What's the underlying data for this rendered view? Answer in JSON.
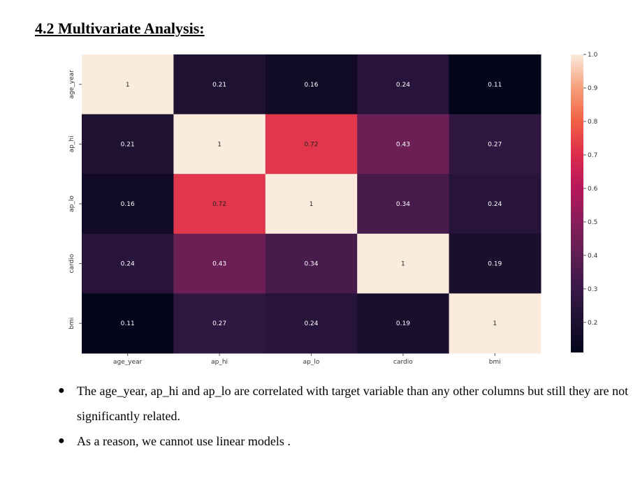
{
  "heading": "4.2 Multivariate Analysis:",
  "chart_data": {
    "type": "heatmap",
    "row_labels": [
      "age_year",
      "ap_hi",
      "ap_lo",
      "cardio",
      "bmi"
    ],
    "col_labels": [
      "age_year",
      "ap_hi",
      "ap_lo",
      "cardio",
      "bmi"
    ],
    "values": [
      [
        1,
        0.21,
        0.16,
        0.24,
        0.11
      ],
      [
        0.21,
        1,
        0.72,
        0.43,
        0.27
      ],
      [
        0.16,
        0.72,
        1,
        0.34,
        0.24
      ],
      [
        0.24,
        0.43,
        0.34,
        1,
        0.19
      ],
      [
        0.11,
        0.27,
        0.24,
        0.19,
        1
      ]
    ],
    "value_labels": [
      [
        "1",
        "0.21",
        "0.16",
        "0.24",
        "0.11"
      ],
      [
        "0.21",
        "1",
        "0.72",
        "0.43",
        "0.27"
      ],
      [
        "0.16",
        "0.72",
        "1",
        "0.34",
        "0.24"
      ],
      [
        "0.24",
        "0.43",
        "0.34",
        "1",
        "0.19"
      ],
      [
        "0.11",
        "0.27",
        "0.24",
        "0.19",
        "1"
      ]
    ],
    "colorbar": {
      "range": [
        0.11,
        1.0
      ],
      "ticks": [
        "1.0",
        "0.9",
        "0.8",
        "0.7",
        "0.6",
        "0.5",
        "0.4",
        "0.3",
        "0.2"
      ],
      "tick_values": [
        1.0,
        0.9,
        0.8,
        0.7,
        0.6,
        0.5,
        0.4,
        0.3,
        0.2
      ],
      "colormap": "rocket"
    },
    "colormap_stops": [
      "#03051a",
      "#1f1132",
      "#3b1a4a",
      "#611f53",
      "#8a1d5a",
      "#b8175b",
      "#de2d4c",
      "#f26145",
      "#f6a07b",
      "#faebdd"
    ]
  },
  "bullets": [
    "The age_year, ap_hi and ap_lo are correlated with target variable than any other columns but still they are not significantly related.",
    "As a reason, we cannot use linear models ."
  ]
}
